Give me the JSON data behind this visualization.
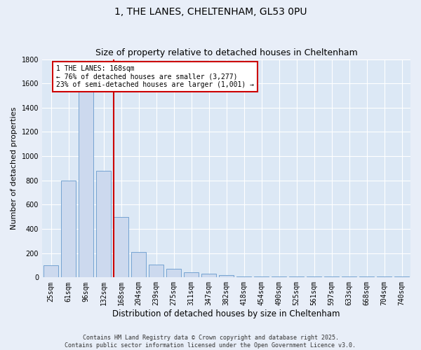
{
  "title1": "1, THE LANES, CHELTENHAM, GL53 0PU",
  "title2": "Size of property relative to detached houses in Cheltenham",
  "xlabel": "Distribution of detached houses by size in Cheltenham",
  "ylabel": "Number of detached properties",
  "categories": [
    "25sqm",
    "61sqm",
    "96sqm",
    "132sqm",
    "168sqm",
    "204sqm",
    "239sqm",
    "275sqm",
    "311sqm",
    "347sqm",
    "382sqm",
    "418sqm",
    "454sqm",
    "490sqm",
    "525sqm",
    "561sqm",
    "597sqm",
    "633sqm",
    "668sqm",
    "704sqm",
    "740sqm"
  ],
  "values": [
    100,
    800,
    1530,
    880,
    500,
    210,
    105,
    70,
    40,
    30,
    20,
    10,
    5,
    5,
    5,
    5,
    5,
    5,
    5,
    5,
    5
  ],
  "bar_color": "#ccd9ee",
  "bar_edge_color": "#6699cc",
  "vline_x_index": 4,
  "vline_color": "#cc0000",
  "annotation_text": "1 THE LANES: 168sqm\n← 76% of detached houses are smaller (3,277)\n23% of semi-detached houses are larger (1,001) →",
  "annotation_box_color": "#cc0000",
  "ylim": [
    0,
    1800
  ],
  "yticks": [
    0,
    200,
    400,
    600,
    800,
    1000,
    1200,
    1400,
    1600,
    1800
  ],
  "fig_bg_color": "#e8eef8",
  "ax_bg_color": "#dce8f5",
  "grid_color": "#ffffff",
  "footer": "Contains HM Land Registry data © Crown copyright and database right 2025.\nContains public sector information licensed under the Open Government Licence v3.0.",
  "title1_fontsize": 10,
  "title2_fontsize": 9,
  "xlabel_fontsize": 8.5,
  "ylabel_fontsize": 8,
  "tick_fontsize": 7,
  "footer_fontsize": 6,
  "ann_fontsize": 7
}
